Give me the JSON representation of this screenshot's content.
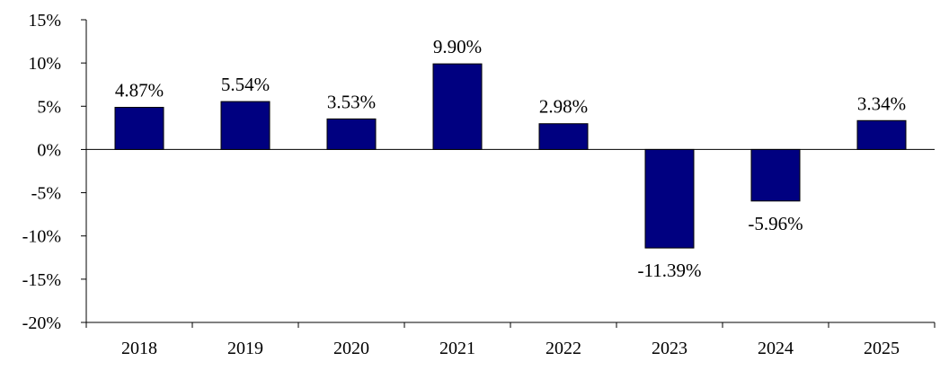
{
  "chart_data": {
    "type": "bar",
    "categories": [
      "2018",
      "2019",
      "2020",
      "2021",
      "2022",
      "2023",
      "2024",
      "2025"
    ],
    "values": [
      4.87,
      5.54,
      3.53,
      9.9,
      2.98,
      -11.39,
      -5.96,
      3.34
    ],
    "data_labels": [
      "4.87%",
      "5.54%",
      "3.53%",
      "9.90%",
      "2.98%",
      "-11.39%",
      "-5.96%",
      "3.34%"
    ],
    "y_ticks": [
      15,
      10,
      5,
      0,
      -5,
      -10,
      -15,
      -20
    ],
    "y_tick_labels": [
      "15%",
      "10%",
      "5%",
      "0%",
      "-5%",
      "-10%",
      "-15%",
      "-20%"
    ],
    "ylim": [
      -20,
      15
    ],
    "grid": false,
    "legend": "none",
    "title": "",
    "xlabel": "",
    "ylabel": "",
    "colors": {
      "bar_fill": "#000080",
      "bar_stroke": "#000000",
      "axis": "#000000"
    }
  }
}
